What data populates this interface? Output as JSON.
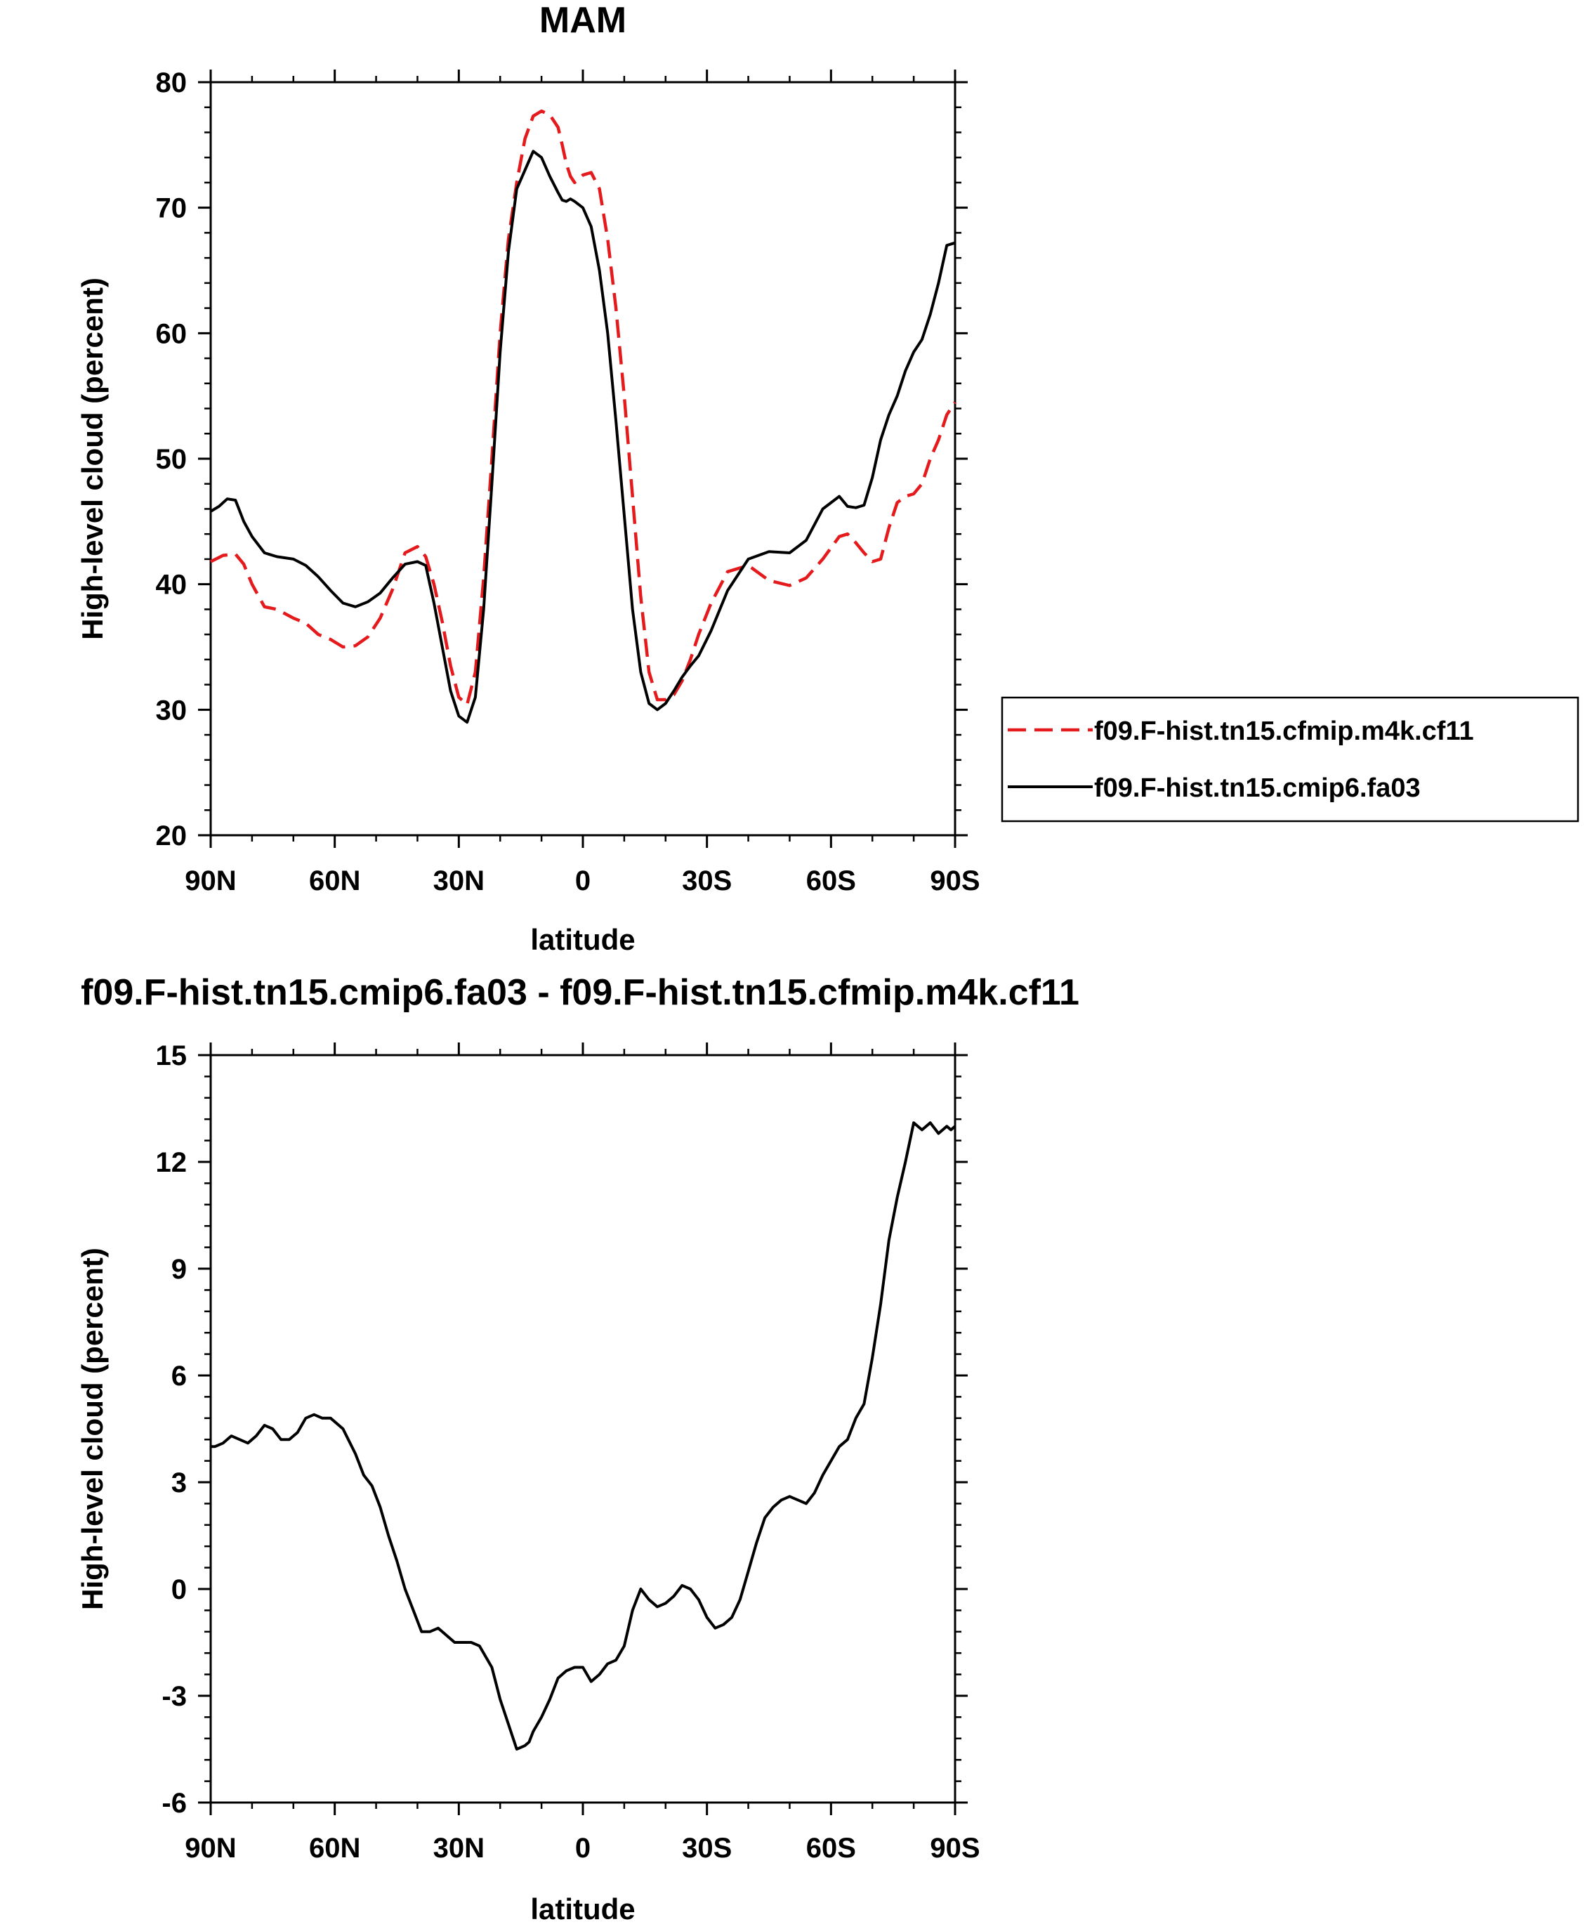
{
  "figure": {
    "panel_title_top": "MAM",
    "panel_title_bottom": "f09.F-hist.tn15.cmip6.fa03 - f09.F-hist.tn15.cfmip.m4k.cf11"
  },
  "chart_data": [
    {
      "type": "line",
      "title": "MAM",
      "xlabel": "latitude",
      "ylabel": "High-level cloud (percent)",
      "x_direction": "north_to_south",
      "xlim": [
        90,
        -90
      ],
      "ylim": [
        20,
        80
      ],
      "xticks": [
        90,
        60,
        30,
        0,
        -30,
        -60,
        -90
      ],
      "xtick_labels": [
        "90N",
        "60N",
        "30N",
        "0",
        "30S",
        "60S",
        "90S"
      ],
      "yticks": [
        20,
        30,
        40,
        50,
        60,
        70,
        80
      ],
      "ytick_labels": [
        "20",
        "30",
        "40",
        "50",
        "60",
        "70",
        "80"
      ],
      "legend_position": "right",
      "grid": false,
      "series": [
        {
          "name": "f09.F-hist.tn15.cfmip.m4k.cf11",
          "color": "#e41a1c",
          "dash": "dashed",
          "x": [
            90,
            87,
            84,
            82,
            80,
            77,
            74,
            70,
            67,
            64,
            61,
            58,
            55,
            52,
            49,
            46,
            43,
            40,
            38,
            36,
            34,
            32,
            30,
            28,
            26,
            24,
            22,
            20,
            18,
            16,
            14,
            12,
            10,
            8,
            6,
            5,
            4,
            3,
            2,
            0,
            -2,
            -4,
            -6,
            -8,
            -10,
            -12,
            -14,
            -16,
            -18,
            -20,
            -22,
            -24,
            -26,
            -28,
            -31,
            -35,
            -40,
            -45,
            -50,
            -54,
            -58,
            -62,
            -64,
            -66,
            -68,
            -70,
            -72,
            -74,
            -76,
            -78,
            -80,
            -82,
            -84,
            -86,
            -88,
            -90
          ],
          "y": [
            41.8,
            42.3,
            42.4,
            41.6,
            40.0,
            38.2,
            38.0,
            37.3,
            36.9,
            36.0,
            35.6,
            35.0,
            35.1,
            35.8,
            37.3,
            39.6,
            42.5,
            43.0,
            42.2,
            40.0,
            37.0,
            33.5,
            31.0,
            30.4,
            33.0,
            40.5,
            50.0,
            60.0,
            67.5,
            72.0,
            75.5,
            77.3,
            77.7,
            77.4,
            76.4,
            75.0,
            73.5,
            72.5,
            72.0,
            72.6,
            72.8,
            71.5,
            67.5,
            62.0,
            55.0,
            47.0,
            39.0,
            33.0,
            30.8,
            30.8,
            31.2,
            32.3,
            34.0,
            36.0,
            38.5,
            41.0,
            41.5,
            40.3,
            39.9,
            40.5,
            42.0,
            43.8,
            44.0,
            43.3,
            42.5,
            41.8,
            42.0,
            44.5,
            46.5,
            47.0,
            47.2,
            48.0,
            50.0,
            51.5,
            53.5,
            54.5
          ]
        },
        {
          "name": "f09.F-hist.tn15.cmip6.fa03",
          "color": "#000000",
          "dash": "solid",
          "x": [
            90,
            88,
            86,
            84,
            82,
            80,
            77,
            74,
            70,
            67,
            64,
            61,
            58,
            55,
            52,
            49,
            46,
            43,
            40,
            38,
            36,
            34,
            32,
            30,
            28,
            26,
            24,
            22,
            20,
            18,
            16,
            14,
            12,
            10,
            8,
            6,
            5,
            4,
            3,
            2,
            0,
            -2,
            -4,
            -6,
            -8,
            -10,
            -12,
            -14,
            -16,
            -18,
            -20,
            -22,
            -24,
            -26,
            -28,
            -31,
            -35,
            -40,
            -45,
            -50,
            -54,
            -58,
            -62,
            -64,
            -66,
            -68,
            -70,
            -72,
            -74,
            -76,
            -78,
            -80,
            -82,
            -84,
            -86,
            -88,
            -90
          ],
          "y": [
            45.8,
            46.2,
            46.8,
            46.7,
            45.0,
            43.8,
            42.5,
            42.2,
            42.0,
            41.5,
            40.6,
            39.5,
            38.5,
            38.2,
            38.6,
            39.3,
            40.5,
            41.6,
            41.8,
            41.5,
            38.5,
            35.0,
            31.5,
            29.5,
            29.0,
            31.0,
            38.0,
            48.0,
            58.5,
            66.5,
            71.5,
            73.0,
            74.5,
            74.0,
            72.5,
            71.2,
            70.6,
            70.5,
            70.7,
            70.5,
            70.0,
            68.5,
            65.0,
            60.0,
            53.0,
            45.5,
            38.0,
            33.0,
            30.5,
            30.0,
            30.5,
            31.5,
            32.6,
            33.5,
            34.3,
            36.3,
            39.5,
            42.0,
            42.6,
            42.5,
            43.5,
            46.0,
            47.0,
            46.2,
            46.1,
            46.3,
            48.5,
            51.5,
            53.5,
            55.0,
            57.0,
            58.5,
            59.5,
            61.5,
            64.0,
            67.0,
            67.2
          ]
        }
      ]
    },
    {
      "type": "line",
      "title": "f09.F-hist.tn15.cmip6.fa03 - f09.F-hist.tn15.cfmip.m4k.cf11",
      "xlabel": "latitude",
      "ylabel": "High-level cloud (percent)",
      "x_direction": "north_to_south",
      "xlim": [
        90,
        -90
      ],
      "ylim": [
        -6,
        15
      ],
      "xticks": [
        90,
        60,
        30,
        0,
        -30,
        -60,
        -90
      ],
      "xtick_labels": [
        "90N",
        "60N",
        "30N",
        "0",
        "30S",
        "60S",
        "90S"
      ],
      "yticks": [
        -6,
        -3,
        0,
        3,
        6,
        9,
        12,
        15
      ],
      "ytick_labels": [
        "-6",
        "-3",
        "0",
        "3",
        "6",
        "9",
        "12",
        "15"
      ],
      "grid": false,
      "series": [
        {
          "color": "#000000",
          "dash": "solid",
          "x": [
            90,
            89,
            87,
            85,
            83,
            81,
            79,
            77,
            75,
            73,
            71,
            69,
            67,
            65,
            63,
            61,
            58,
            55,
            53,
            51,
            49,
            47,
            45,
            43,
            41,
            39,
            37,
            35,
            33,
            31,
            29,
            27,
            25,
            22,
            20,
            18,
            16,
            14,
            13,
            12,
            10,
            8,
            6,
            4,
            2,
            0,
            -2,
            -4,
            -6,
            -8,
            -10,
            -12,
            -14,
            -16,
            -18,
            -20,
            -22,
            -24,
            -26,
            -28,
            -30,
            -32,
            -34,
            -36,
            -38,
            -40,
            -42,
            -44,
            -46,
            -48,
            -50,
            -52,
            -54,
            -56,
            -58,
            -60,
            -62,
            -64,
            -66,
            -68,
            -70,
            -72,
            -74,
            -76,
            -78,
            -80,
            -82,
            -84,
            -86,
            -88,
            -89,
            -90
          ],
          "y": [
            4.0,
            4.0,
            4.1,
            4.3,
            4.2,
            4.1,
            4.3,
            4.6,
            4.5,
            4.2,
            4.2,
            4.4,
            4.8,
            4.9,
            4.8,
            4.8,
            4.5,
            3.8,
            3.2,
            2.9,
            2.3,
            1.5,
            0.8,
            0.0,
            -0.6,
            -1.2,
            -1.2,
            -1.1,
            -1.3,
            -1.5,
            -1.5,
            -1.5,
            -1.6,
            -2.2,
            -3.1,
            -3.8,
            -4.5,
            -4.4,
            -4.3,
            -4.0,
            -3.6,
            -3.1,
            -2.5,
            -2.3,
            -2.2,
            -2.2,
            -2.6,
            -2.4,
            -2.1,
            -2.0,
            -1.6,
            -0.6,
            0.0,
            -0.3,
            -0.5,
            -0.4,
            -0.2,
            0.1,
            0.0,
            -0.3,
            -0.8,
            -1.1,
            -1.0,
            -0.8,
            -0.3,
            0.5,
            1.3,
            2.0,
            2.3,
            2.5,
            2.6,
            2.5,
            2.4,
            2.7,
            3.2,
            3.6,
            4.0,
            4.2,
            4.8,
            5.2,
            6.5,
            8.0,
            9.8,
            11.0,
            12.0,
            13.1,
            12.9,
            13.1,
            12.8,
            13.0,
            12.9,
            13.0
          ]
        }
      ]
    }
  ]
}
